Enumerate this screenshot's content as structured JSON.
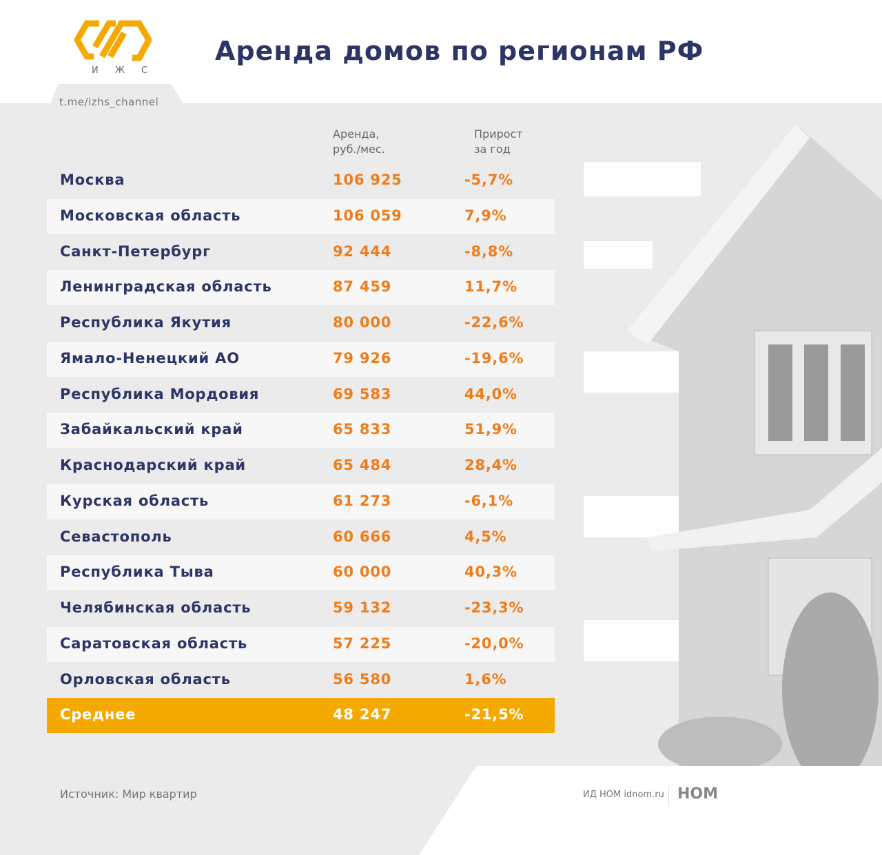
{
  "brand": {
    "logo_text": "И Ж С",
    "channel": "t.me/izhs_channel"
  },
  "title": "Аренда домов по регионам РФ",
  "columns": {
    "rent": [
      "Аренда,",
      "руб./мес."
    ],
    "growth": [
      "Прирост",
      "за год"
    ]
  },
  "rows": [
    {
      "region": "Москва",
      "rent": "106 925",
      "growth": "-5,7%"
    },
    {
      "region": "Московская область",
      "rent": "106 059",
      "growth": "7,9%"
    },
    {
      "region": "Санкт-Петербург",
      "rent": "92 444",
      "growth": "-8,8%"
    },
    {
      "region": "Ленинградская область",
      "rent": "87 459",
      "growth": "11,7%"
    },
    {
      "region": "Республика Якутия",
      "rent": "80 000",
      "growth": "-22,6%"
    },
    {
      "region": "Ямало-Ненецкий АО",
      "rent": "79 926",
      "growth": "-19,6%"
    },
    {
      "region": "Республика Мордовия",
      "rent": "69 583",
      "growth": "44,0%"
    },
    {
      "region": "Забайкальский край",
      "rent": "65 833",
      "growth": "51,9%"
    },
    {
      "region": "Краснодарский край",
      "rent": "65 484",
      "growth": "28,4%"
    },
    {
      "region": "Курская область",
      "rent": "61 273",
      "growth": "-6,1%"
    },
    {
      "region": "Севастополь",
      "rent": "60 666",
      "growth": "4,5%"
    },
    {
      "region": "Республика Тыва",
      "rent": "60 000",
      "growth": "40,3%"
    },
    {
      "region": "Челябинская область",
      "rent": "59 132",
      "growth": "-23,3%"
    },
    {
      "region": "Саратовская область",
      "rent": "57 225",
      "growth": "-20,0%"
    },
    {
      "region": "Орловская область",
      "rent": "56 580",
      "growth": "1,6%"
    }
  ],
  "average": {
    "region": "Среднее",
    "rent": "48 247",
    "growth": "-21,5%"
  },
  "footer": {
    "source": "Источник: Мир квартир",
    "publisher": "ИД НОМ idnom.ru",
    "publisher_logo": "НОМ"
  },
  "colors": {
    "navy": "#2b3566",
    "orange": "#f07d1a",
    "yellow": "#f5a800"
  }
}
